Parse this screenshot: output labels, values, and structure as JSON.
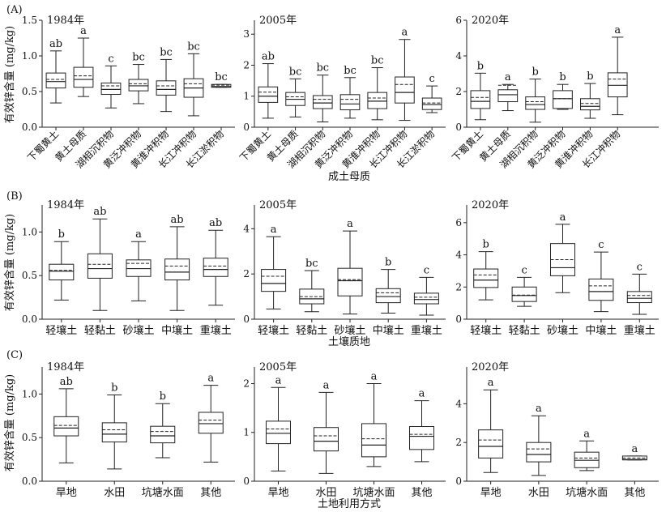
{
  "y_axis_label": "有效锌含量 (mg/kg)",
  "colors": {
    "box": "#222222",
    "mean_line": "#222222"
  },
  "chart_data": [
    {
      "panel": "(A)",
      "xlabel": "成土母质",
      "type": "box",
      "categories": [
        "下蜀黄土",
        "黄土母质",
        "湖相沉积物",
        "黄泛冲积物",
        "黄淮冲积物",
        "长江冲积物",
        "长江淤积物"
      ],
      "subplots": [
        {
          "year": "1984年",
          "ylim": [
            0,
            1.5
          ],
          "ticks": [
            "0.0",
            "0.5",
            "1.0",
            "1.5"
          ],
          "boxes": [
            {
              "min": 0.34,
              "q1": 0.55,
              "median": 0.64,
              "q3": 0.76,
              "max": 1.07,
              "mean": 0.67,
              "group": "ab"
            },
            {
              "min": 0.43,
              "q1": 0.56,
              "median": 0.67,
              "q3": 0.84,
              "max": 1.25,
              "mean": 0.72,
              "group": "a"
            },
            {
              "min": 0.27,
              "q1": 0.46,
              "median": 0.53,
              "q3": 0.62,
              "max": 0.86,
              "mean": 0.58,
              "group": "c"
            },
            {
              "min": 0.33,
              "q1": 0.51,
              "median": 0.58,
              "q3": 0.67,
              "max": 0.88,
              "mean": 0.61,
              "group": "bc"
            },
            {
              "min": 0.22,
              "q1": 0.45,
              "median": 0.53,
              "q3": 0.65,
              "max": 0.95,
              "mean": 0.58,
              "group": "bc"
            },
            {
              "min": 0.16,
              "q1": 0.42,
              "median": 0.55,
              "q3": 0.68,
              "max": 1.03,
              "mean": 0.61,
              "group": "bc"
            },
            {
              "min": 0.56,
              "q1": 0.56,
              "median": 0.57,
              "q3": 0.6,
              "max": 0.6,
              "mean": 0.59,
              "group": "bc"
            }
          ]
        },
        {
          "year": "2005年",
          "ylim": [
            0,
            3.45
          ],
          "ticks": [
            "0",
            "1",
            "2",
            "3"
          ],
          "boxes": [
            {
              "min": 0.29,
              "q1": 0.8,
              "median": 1.0,
              "q3": 1.3,
              "max": 2.05,
              "mean": 1.13,
              "group": "ab"
            },
            {
              "min": 0.33,
              "q1": 0.7,
              "median": 0.9,
              "q3": 1.12,
              "max": 1.56,
              "mean": 0.98,
              "group": "bc"
            },
            {
              "min": 0.17,
              "q1": 0.6,
              "median": 0.78,
              "q3": 1.02,
              "max": 1.68,
              "mean": 0.9,
              "group": "bc"
            },
            {
              "min": 0.29,
              "q1": 0.56,
              "median": 0.75,
              "q3": 1.05,
              "max": 1.6,
              "mean": 0.9,
              "group": "bc"
            },
            {
              "min": 0.24,
              "q1": 0.6,
              "median": 0.84,
              "q3": 1.12,
              "max": 1.92,
              "mean": 0.94,
              "group": "bc"
            },
            {
              "min": 0.22,
              "q1": 0.78,
              "median": 1.12,
              "q3": 1.62,
              "max": 2.83,
              "mean": 1.38,
              "group": "a"
            },
            {
              "min": 0.47,
              "q1": 0.57,
              "median": 0.73,
              "q3": 0.94,
              "max": 1.33,
              "mean": 0.78,
              "group": "c"
            }
          ]
        },
        {
          "year": "2020年",
          "ylim": [
            0,
            6
          ],
          "ticks": [
            "0",
            "2",
            "4",
            "6"
          ],
          "categories": [
            "下蜀黄土",
            "黄土母质",
            "湖相沉积物",
            "黄泛冲积物",
            "黄淮冲积物",
            "长江冲积物"
          ],
          "boxes": [
            {
              "min": 0.42,
              "q1": 1.05,
              "median": 1.45,
              "q3": 2.05,
              "max": 3.03,
              "mean": 1.67,
              "group": "b"
            },
            {
              "min": 0.93,
              "q1": 1.43,
              "median": 1.82,
              "q3": 2.1,
              "max": 2.4,
              "mean": 2.35,
              "group": "a"
            },
            {
              "min": 0.28,
              "q1": 1.0,
              "median": 1.27,
              "q3": 1.7,
              "max": 2.7,
              "mean": 1.43,
              "group": "b"
            },
            {
              "min": 1.0,
              "q1": 1.05,
              "median": 1.6,
              "q3": 2.05,
              "max": 2.4,
              "mean": 1.6,
              "group": "b"
            },
            {
              "min": 0.5,
              "q1": 0.97,
              "median": 1.17,
              "q3": 1.6,
              "max": 2.45,
              "mean": 1.33,
              "group": "b"
            },
            {
              "min": 0.7,
              "q1": 1.7,
              "median": 2.35,
              "q3": 3.05,
              "max": 5.05,
              "mean": 2.7,
              "group": "a"
            }
          ]
        }
      ]
    },
    {
      "panel": "(B)",
      "xlabel": "土壤质地",
      "type": "box",
      "categories": [
        "轻壤土",
        "轻黏土",
        "砂壤土",
        "中壤土",
        "重壤土"
      ],
      "subplots": [
        {
          "year": "1984年",
          "ylim": [
            0,
            1.31
          ],
          "ticks": [
            "0.0",
            "0.5",
            "1.0"
          ],
          "boxes": [
            {
              "min": 0.22,
              "q1": 0.45,
              "median": 0.55,
              "q3": 0.63,
              "max": 0.89,
              "mean": 0.56,
              "group": "b"
            },
            {
              "min": 0.1,
              "q1": 0.47,
              "median": 0.58,
              "q3": 0.75,
              "max": 1.15,
              "mean": 0.63,
              "group": "ab"
            },
            {
              "min": 0.21,
              "q1": 0.49,
              "median": 0.58,
              "q3": 0.68,
              "max": 0.89,
              "mean": 0.64,
              "group": "a"
            },
            {
              "min": 0.1,
              "q1": 0.45,
              "median": 0.54,
              "q3": 0.69,
              "max": 1.06,
              "mean": 0.61,
              "group": "ab"
            },
            {
              "min": 0.16,
              "q1": 0.49,
              "median": 0.57,
              "q3": 0.7,
              "max": 1.02,
              "mean": 0.61,
              "group": "ab"
            }
          ]
        },
        {
          "year": "2005年",
          "ylim": [
            0,
            5.05
          ],
          "ticks": [
            "0",
            "2",
            "4"
          ],
          "boxes": [
            {
              "min": 0.45,
              "q1": 1.23,
              "median": 1.58,
              "q3": 2.2,
              "max": 3.65,
              "mean": 1.9,
              "group": "a"
            },
            {
              "min": 0.33,
              "q1": 0.68,
              "median": 0.9,
              "q3": 1.33,
              "max": 2.15,
              "mean": 1.0,
              "group": "bc"
            },
            {
              "min": 0.23,
              "q1": 1.03,
              "median": 1.7,
              "q3": 2.25,
              "max": 3.9,
              "mean": 1.75,
              "group": "a"
            },
            {
              "min": 0.27,
              "q1": 0.73,
              "median": 1.0,
              "q3": 1.35,
              "max": 2.2,
              "mean": 1.17,
              "group": "b"
            },
            {
              "min": 0.18,
              "q1": 0.68,
              "median": 0.87,
              "q3": 1.15,
              "max": 1.85,
              "mean": 0.97,
              "group": "c"
            }
          ]
        },
        {
          "year": "2020年",
          "ylim": [
            0,
            7.1
          ],
          "ticks": [
            "0",
            "2",
            "4",
            "6"
          ],
          "boxes": [
            {
              "min": 1.2,
              "q1": 1.97,
              "median": 2.43,
              "q3": 3.12,
              "max": 4.2,
              "mean": 2.75,
              "group": "b"
            },
            {
              "min": 0.8,
              "q1": 1.1,
              "median": 1.47,
              "q3": 2.0,
              "max": 2.6,
              "mean": 1.5,
              "group": "c"
            },
            {
              "min": 1.65,
              "q1": 2.7,
              "median": 3.2,
              "q3": 4.7,
              "max": 5.9,
              "mean": 3.7,
              "group": "a"
            },
            {
              "min": 0.47,
              "q1": 1.17,
              "median": 1.72,
              "q3": 2.5,
              "max": 4.17,
              "mean": 2.07,
              "group": "c"
            },
            {
              "min": 0.3,
              "q1": 1.03,
              "median": 1.3,
              "q3": 1.72,
              "max": 2.8,
              "mean": 1.47,
              "group": "c"
            }
          ]
        }
      ]
    },
    {
      "panel": "(C)",
      "xlabel": "土地利用方式",
      "type": "box",
      "categories": [
        "旱地",
        "水田",
        "坑塘水面",
        "其他"
      ],
      "subplots": [
        {
          "year": "1984年",
          "ylim": [
            0,
            1.31
          ],
          "ticks": [
            "0.0",
            "0.5",
            "1.0"
          ],
          "boxes": [
            {
              "min": 0.21,
              "q1": 0.52,
              "median": 0.61,
              "q3": 0.74,
              "max": 1.06,
              "mean": 0.64,
              "group": "ab"
            },
            {
              "min": 0.14,
              "q1": 0.45,
              "median": 0.54,
              "q3": 0.67,
              "max": 0.99,
              "mean": 0.59,
              "group": "b"
            },
            {
              "min": 0.27,
              "q1": 0.44,
              "median": 0.52,
              "q3": 0.63,
              "max": 0.89,
              "mean": 0.57,
              "group": "b"
            },
            {
              "min": 0.22,
              "q1": 0.55,
              "median": 0.66,
              "q3": 0.79,
              "max": 1.1,
              "mean": 0.7,
              "group": "a"
            }
          ]
        },
        {
          "year": "2005年",
          "ylim": [
            0,
            2.34
          ],
          "ticks": [
            "0",
            "1",
            "2"
          ],
          "boxes": [
            {
              "min": 0.21,
              "q1": 0.77,
              "median": 0.98,
              "q3": 1.23,
              "max": 1.92,
              "mean": 1.07,
              "group": "a"
            },
            {
              "min": 0.16,
              "q1": 0.62,
              "median": 0.82,
              "q3": 1.1,
              "max": 1.82,
              "mean": 0.93,
              "group": "a"
            },
            {
              "min": 0.3,
              "q1": 0.5,
              "median": 0.74,
              "q3": 1.18,
              "max": 2.0,
              "mean": 0.87,
              "group": "a"
            },
            {
              "min": 0.4,
              "q1": 0.65,
              "median": 0.92,
              "q3": 1.12,
              "max": 1.65,
              "mean": 0.96,
              "group": "a"
            }
          ]
        },
        {
          "year": "2020年",
          "ylim": [
            0,
            5.9
          ],
          "ticks": [
            "0",
            "2",
            "4"
          ],
          "boxes": [
            {
              "min": 0.45,
              "q1": 1.2,
              "median": 1.8,
              "q3": 2.65,
              "max": 4.72,
              "mean": 2.13,
              "group": "a"
            },
            {
              "min": 0.3,
              "q1": 1.0,
              "median": 1.38,
              "q3": 2.0,
              "max": 3.38,
              "mean": 1.67,
              "group": "a"
            },
            {
              "min": 0.55,
              "q1": 0.7,
              "median": 1.08,
              "q3": 1.5,
              "max": 2.08,
              "mean": 1.2,
              "group": "a"
            },
            {
              "min": 1.1,
              "q1": 1.1,
              "median": 1.12,
              "q3": 1.3,
              "max": 1.3,
              "mean": 1.2,
              "group": "a"
            }
          ]
        }
      ]
    }
  ]
}
